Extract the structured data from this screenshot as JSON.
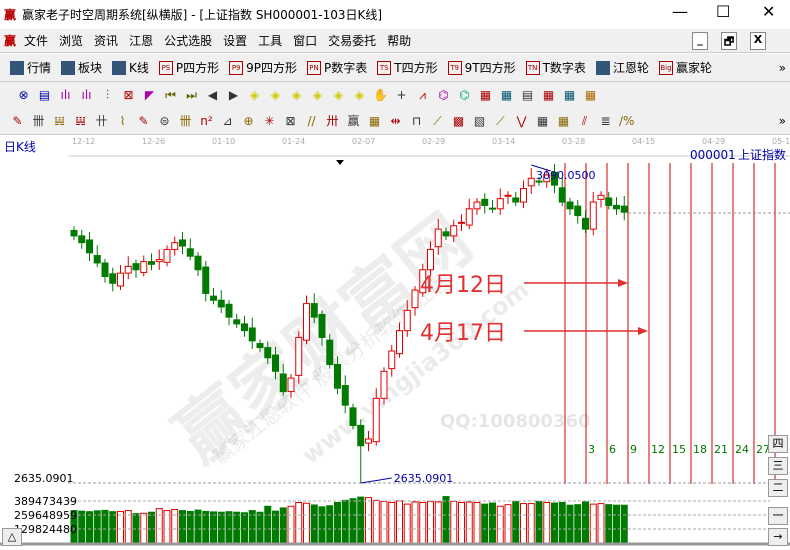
{
  "window": {
    "title": "赢家老子时空周期系统[纵横版] - [上证指数  SH000001-103日K线]",
    "logo": "赢",
    "minimize": "—",
    "maximize": "☐",
    "close": "✕"
  },
  "menu": {
    "items": [
      "文件",
      "浏览",
      "资讯",
      "江恩",
      "公式选股",
      "设置",
      "工具",
      "窗口",
      "交易委托",
      "帮助"
    ],
    "mdi": [
      "_",
      "🗗",
      "X"
    ]
  },
  "toolbar1": {
    "items": [
      {
        "icon": "table-icon",
        "label": "行情"
      },
      {
        "icon": "blocks-icon",
        "label": "板块"
      },
      {
        "icon": "kline-icon",
        "label": "K线"
      },
      {
        "icon": "PS",
        "label": "P四方形"
      },
      {
        "icon": "P9",
        "label": "9P四方形"
      },
      {
        "icon": "PN",
        "label": "P数字表"
      },
      {
        "icon": "TS",
        "label": "T四方形"
      },
      {
        "icon": "T9",
        "label": "9T四方形"
      },
      {
        "icon": "TN",
        "label": "T数字表"
      },
      {
        "icon": "gann-wheel-icon",
        "label": "江恩轮"
      },
      {
        "icon": "Big",
        "label": "赢家轮"
      }
    ],
    "more": "»"
  },
  "toolbar2": {
    "period": "日",
    "glyphs": [
      "⊗",
      "▤",
      "ılı",
      "ılı",
      "⫶",
      "⊠",
      "◤",
      "⏮",
      "⏭",
      "◀",
      "▶",
      "◈",
      "◈",
      "◈",
      "◈",
      "◈",
      "◈",
      "✋",
      "+",
      "⩘",
      "⌬",
      "⌬",
      "▦",
      "▦",
      "▤",
      "▦",
      "▦",
      "▦"
    ]
  },
  "toolbar3": {
    "glyphs": [
      "✎",
      "卌",
      "𝍏",
      "𝍏",
      "卄",
      "⌇",
      "✎",
      "⊜",
      "卌",
      "n²",
      "⊿",
      "⊕",
      "✳",
      "⊠",
      "//",
      "卅",
      "赢",
      "▦",
      "⇹",
      "⊓",
      "⟋",
      "▩",
      "▧",
      "⟋",
      "⋁",
      "▦",
      "▦",
      "⫽",
      "≣",
      "∕%"
    ],
    "more": "»"
  },
  "chart": {
    "period_label": "日K线",
    "symbol": "000001",
    "name": "上证指数",
    "date_ticks": [
      "12-12",
      "12-26",
      "01-10",
      "01-24",
      "02-07",
      "02-29",
      "03-14",
      "03-28",
      "04-15",
      "04-29",
      "05-13"
    ],
    "high_label": "3090.0500",
    "low_label": "2635.0901",
    "low_axis": "2635.0901",
    "volume_axis": [
      "389473439",
      "259648959",
      "129824480"
    ],
    "cycle_labels": [
      "3",
      "6",
      "9",
      "12",
      "15",
      "18",
      "21",
      "24",
      "27"
    ],
    "annotations": [
      "4月12日",
      "4月17日"
    ],
    "watermark": [
      "赢家财富网",
      "赢家江恩软件 股票分析软件 江恩",
      "www.yingjia360.com",
      "QQ:100800360"
    ],
    "right_buttons": [
      "四",
      "三",
      "二",
      "一",
      "→"
    ],
    "left_button": "△",
    "colors": {
      "up": "#e00000",
      "down": "#007a00",
      "cycle_line": "#d00000",
      "annotation": "#e03030"
    }
  },
  "chart_data": {
    "type": "candlestick",
    "close": [
      3000,
      2990,
      2975,
      2960,
      2940,
      2930,
      2945,
      2955,
      2950,
      2962,
      2958,
      2965,
      2980,
      2990,
      2985,
      2970,
      2950,
      2915,
      2905,
      2895,
      2880,
      2870,
      2860,
      2845,
      2835,
      2820,
      2800,
      2770,
      2790,
      2850,
      2900,
      2880,
      2850,
      2810,
      2775,
      2750,
      2720,
      2690,
      2700,
      2760,
      2800,
      2830,
      2860,
      2890,
      2920,
      2950,
      2980,
      3010,
      3000,
      3015,
      3020,
      3040,
      3050,
      3045,
      3040,
      3055,
      3060,
      3050,
      3070,
      3085,
      3080,
      3090,
      3075,
      3050,
      3040,
      3030,
      3010,
      3050,
      3060,
      3045,
      3040,
      3035
    ],
    "volume": [
      300,
      295,
      290,
      298,
      302,
      290,
      292,
      300,
      272,
      275,
      285,
      318,
      300,
      310,
      300,
      292,
      305,
      293,
      288,
      285,
      290,
      285,
      280,
      300,
      285,
      340,
      295,
      325,
      340,
      375,
      368,
      352,
      335,
      345,
      375,
      395,
      410,
      425,
      420,
      395,
      385,
      375,
      390,
      360,
      380,
      375,
      385,
      380,
      430,
      385,
      375,
      380,
      375,
      360,
      370,
      340,
      355,
      385,
      365,
      365,
      385,
      375,
      370,
      375,
      350,
      355,
      380,
      360,
      365,
      355,
      350,
      350
    ]
  }
}
